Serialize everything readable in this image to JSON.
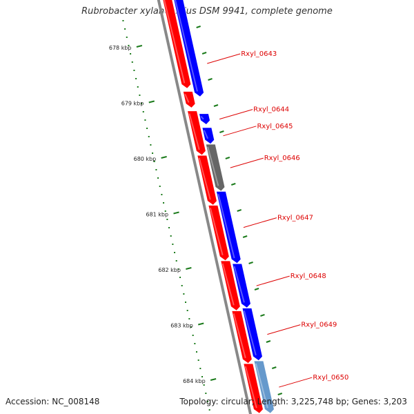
{
  "title": "Rubrobacter xylanophilus DSM 9941, complete genome",
  "footer": {
    "accession": "Accession: NC_008148",
    "topology": "Topology: circular; Length: 3,225,748 bp; Genes: 3,203"
  },
  "colors": {
    "backbone": "#888888",
    "reverse_strand": "#ff0000",
    "forward_strand": "#0000ff",
    "other_feature": "#666666",
    "light_feature": "#6699cc",
    "tick": "#1a7a1a",
    "label": "#dd0000"
  },
  "ticks": [
    {
      "kbp": 678,
      "label": "678 kbp"
    },
    {
      "kbp": 679,
      "label": "679 kbp"
    },
    {
      "kbp": 680,
      "label": "680 kbp"
    },
    {
      "kbp": 681,
      "label": "681 kbp"
    },
    {
      "kbp": 682,
      "label": "682 kbp"
    },
    {
      "kbp": 683,
      "label": "683 kbp"
    },
    {
      "kbp": 684,
      "label": "684 kbp"
    }
  ],
  "genes": [
    {
      "name": "Rxyl_0643",
      "start_kbp": 677.0,
      "end_kbp": 678.9,
      "strand": "forward",
      "color": "#0000ff"
    },
    {
      "name": "Rxyl_0644",
      "start_kbp": 679.2,
      "end_kbp": 679.4,
      "strand": "forward",
      "color": "#0000ff"
    },
    {
      "name": "Rxyl_0645",
      "start_kbp": 679.45,
      "end_kbp": 679.75,
      "strand": "forward",
      "color": "#0000ff"
    },
    {
      "name": "Rxyl_0646",
      "start_kbp": 679.75,
      "end_kbp": 680.6,
      "strand": "forward",
      "color": "#666666"
    },
    {
      "name": "Rxyl_0647",
      "start_kbp": 680.6,
      "end_kbp": 681.9,
      "strand": "forward",
      "color": "#0000ff"
    },
    {
      "name": "Rxyl_0648",
      "start_kbp": 681.9,
      "end_kbp": 682.7,
      "strand": "forward",
      "color": "#0000ff"
    },
    {
      "name": "Rxyl_0649",
      "start_kbp": 682.7,
      "end_kbp": 683.65,
      "strand": "forward",
      "color": "#0000ff"
    },
    {
      "name": "Rxyl_0650",
      "start_kbp": 683.65,
      "end_kbp": 684.6,
      "strand": "forward",
      "color": "#6699cc"
    }
  ],
  "reverse_genes": [
    {
      "start_kbp": 677.0,
      "end_kbp": 678.75
    },
    {
      "start_kbp": 678.8,
      "end_kbp": 679.1
    },
    {
      "start_kbp": 679.15,
      "end_kbp": 679.95
    },
    {
      "start_kbp": 679.95,
      "end_kbp": 680.85
    },
    {
      "start_kbp": 680.85,
      "end_kbp": 681.85
    },
    {
      "start_kbp": 681.85,
      "end_kbp": 682.75
    },
    {
      "start_kbp": 682.75,
      "end_kbp": 683.7
    },
    {
      "start_kbp": 683.7,
      "end_kbp": 684.6
    }
  ]
}
